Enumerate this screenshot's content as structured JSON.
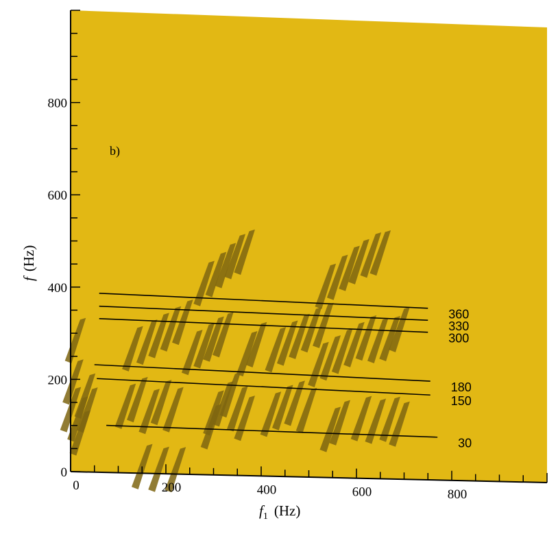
{
  "chart_data": {
    "type": "line",
    "panel_label": "b)",
    "xlabel": "f",
    "xlabel_sub": "1",
    "xlabel_unit": "(Hz)",
    "ylabel": "f",
    "ylabel_unit": "(Hz)",
    "xlim": [
      0,
      1000
    ],
    "ylim": [
      0,
      1000
    ],
    "x_ticks": [
      0,
      200,
      400,
      600,
      800
    ],
    "y_ticks": [
      0,
      200,
      400,
      600,
      800
    ],
    "grid": false,
    "background_color": "#e2b814",
    "mark_color": "#7e6510",
    "series": [
      {
        "label": "360",
        "x": [
          60,
          750
        ],
        "y": [
          388,
          372
        ]
      },
      {
        "label": "330",
        "x": [
          60,
          750
        ],
        "y": [
          360,
          346
        ]
      },
      {
        "label": "300",
        "x": [
          60,
          750
        ],
        "y": [
          333,
          320
        ]
      },
      {
        "label": "180",
        "x": [
          50,
          755
        ],
        "y": [
          233,
          214
        ]
      },
      {
        "label": "150",
        "x": [
          55,
          755
        ],
        "y": [
          203,
          184
        ]
      },
      {
        "label": "30",
        "x": [
          75,
          770
        ],
        "y": [
          102,
          93
        ]
      }
    ],
    "marks": [
      {
        "x": 10,
        "y": 180
      },
      {
        "x": 25,
        "y": 160
      },
      {
        "x": 40,
        "y": 210
      },
      {
        "x": 15,
        "y": 240
      },
      {
        "x": 30,
        "y": 130
      },
      {
        "x": 45,
        "y": 180
      },
      {
        "x": 20,
        "y": 330
      },
      {
        "x": 125,
        "y": 190
      },
      {
        "x": 150,
        "y": 205
      },
      {
        "x": 175,
        "y": 180
      },
      {
        "x": 200,
        "y": 200
      },
      {
        "x": 225,
        "y": 185
      },
      {
        "x": 140,
        "y": 315
      },
      {
        "x": 170,
        "y": 330
      },
      {
        "x": 195,
        "y": 345
      },
      {
        "x": 220,
        "y": 360
      },
      {
        "x": 245,
        "y": 375
      },
      {
        "x": 160,
        "y": 60
      },
      {
        "x": 195,
        "y": 55
      },
      {
        "x": 230,
        "y": 55
      },
      {
        "x": 265,
        "y": 310
      },
      {
        "x": 290,
        "y": 325
      },
      {
        "x": 310,
        "y": 340
      },
      {
        "x": 330,
        "y": 350
      },
      {
        "x": 310,
        "y": 180
      },
      {
        "x": 330,
        "y": 200
      },
      {
        "x": 345,
        "y": 220
      },
      {
        "x": 360,
        "y": 190
      },
      {
        "x": 375,
        "y": 170
      },
      {
        "x": 305,
        "y": 150
      },
      {
        "x": 380,
        "y": 310
      },
      {
        "x": 400,
        "y": 330
      },
      {
        "x": 290,
        "y": 460
      },
      {
        "x": 315,
        "y": 480
      },
      {
        "x": 335,
        "y": 500
      },
      {
        "x": 355,
        "y": 520
      },
      {
        "x": 375,
        "y": 530
      },
      {
        "x": 430,
        "y": 180
      },
      {
        "x": 455,
        "y": 195
      },
      {
        "x": 480,
        "y": 205
      },
      {
        "x": 505,
        "y": 190
      },
      {
        "x": 440,
        "y": 320
      },
      {
        "x": 465,
        "y": 335
      },
      {
        "x": 490,
        "y": 350
      },
      {
        "x": 515,
        "y": 365
      },
      {
        "x": 540,
        "y": 375
      },
      {
        "x": 530,
        "y": 290
      },
      {
        "x": 555,
        "y": 305
      },
      {
        "x": 580,
        "y": 320
      },
      {
        "x": 605,
        "y": 335
      },
      {
        "x": 630,
        "y": 350
      },
      {
        "x": 655,
        "y": 345
      },
      {
        "x": 680,
        "y": 350
      },
      {
        "x": 700,
        "y": 370
      },
      {
        "x": 545,
        "y": 460
      },
      {
        "x": 570,
        "y": 480
      },
      {
        "x": 595,
        "y": 500
      },
      {
        "x": 615,
        "y": 515
      },
      {
        "x": 640,
        "y": 530
      },
      {
        "x": 660,
        "y": 535
      },
      {
        "x": 555,
        "y": 150
      },
      {
        "x": 575,
        "y": 165
      },
      {
        "x": 620,
        "y": 175
      },
      {
        "x": 650,
        "y": 170
      },
      {
        "x": 680,
        "y": 175
      },
      {
        "x": 700,
        "y": 165
      }
    ]
  }
}
